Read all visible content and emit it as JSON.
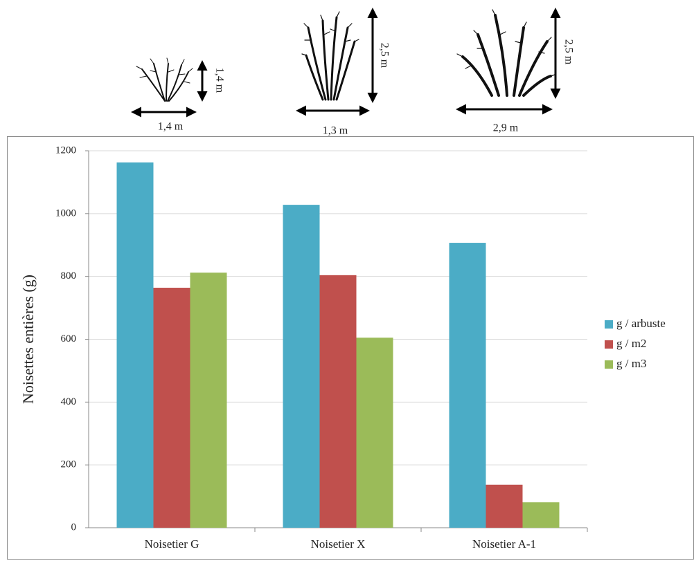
{
  "illustrations": [
    {
      "width_label": "1,4 m",
      "height_label": "1,4 m"
    },
    {
      "width_label": "1,3 m",
      "height_label": "2,5 m"
    },
    {
      "width_label": "2,9 m",
      "height_label": "2,5 m"
    }
  ],
  "chart_data": {
    "type": "bar",
    "y_label": "Noisettes entières (g)",
    "categories": [
      "Noisetier G",
      "Noisetier X",
      "Noisetier A-1"
    ],
    "series": [
      {
        "name": "g / arbuste",
        "color": "#4bacc6",
        "values": [
          1163,
          1028,
          907
        ]
      },
      {
        "name": "g / m2",
        "color": "#c0504d",
        "values": [
          764,
          804,
          137
        ]
      },
      {
        "name": "g / m3",
        "color": "#9bbb59",
        "values": [
          812,
          605,
          81
        ]
      }
    ],
    "ylim": [
      0,
      1200
    ],
    "yticks": [
      0,
      200,
      400,
      600,
      800,
      1000,
      1200
    ],
    "grid": true,
    "legend": "right"
  }
}
